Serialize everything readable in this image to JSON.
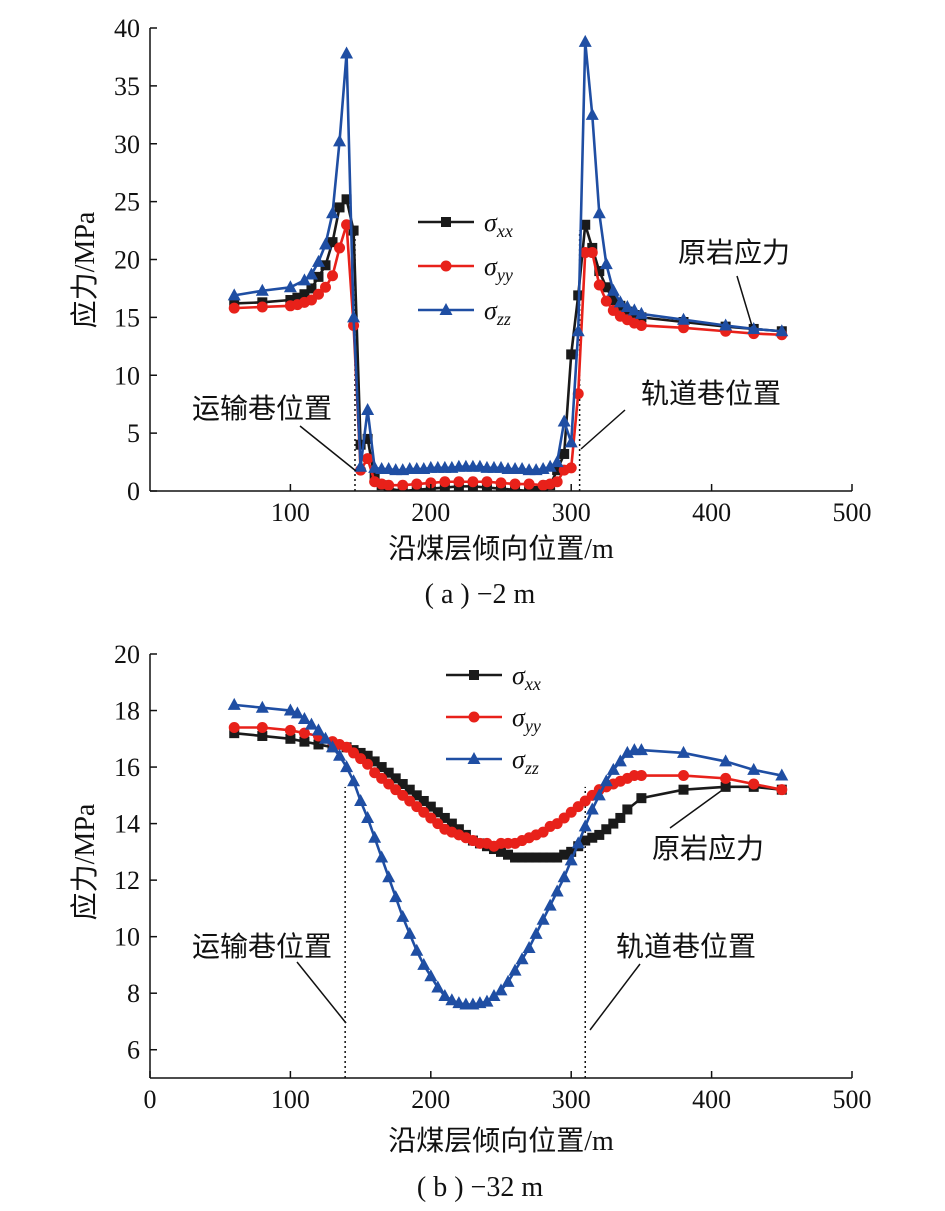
{
  "colors": {
    "sxx": "#1a1a1a",
    "syy": "#e8211a",
    "szz": "#1f4ea3"
  },
  "legend": [
    {
      "key": "sxx",
      "symbol": "σ",
      "sub": "xx",
      "marker": "square"
    },
    {
      "key": "syy",
      "symbol": "σ",
      "sub": "yy",
      "marker": "circle"
    },
    {
      "key": "szz",
      "symbol": "σ",
      "sub": "zz",
      "marker": "triangle"
    }
  ],
  "chart_data": [
    {
      "type": "line",
      "caption": "( a ) −2 m",
      "xlabel": "沿煤层倾向位置/m",
      "ylabel": "应力/MPa",
      "xlim": [
        0,
        500
      ],
      "ylim": [
        0,
        40
      ],
      "xticks": [
        100,
        200,
        300,
        400,
        500
      ],
      "yticks": [
        0,
        5,
        10,
        15,
        20,
        25,
        30,
        35,
        40
      ],
      "annotations": {
        "left_roadway": "运输巷位置",
        "right_roadway": "轨道巷位置",
        "virgin_stress": "原岩应力"
      },
      "roadway_positions": [
        146,
        306
      ],
      "series": [
        {
          "name": "σxx",
          "key": "sxx",
          "x": [
            60,
            80,
            100,
            105,
            110,
            115,
            120,
            125,
            130,
            135,
            140,
            145,
            150,
            155,
            160,
            165,
            170,
            180,
            190,
            200,
            210,
            220,
            230,
            240,
            250,
            260,
            270,
            275,
            280,
            285,
            290,
            295,
            300,
            305,
            310,
            315,
            320,
            325,
            330,
            335,
            340,
            345,
            350,
            380,
            410,
            430,
            450
          ],
          "y": [
            16.2,
            16.3,
            16.5,
            16.7,
            17.0,
            17.5,
            18.5,
            19.5,
            21.5,
            24.5,
            25.2,
            22.5,
            4.0,
            4.5,
            1.2,
            0.5,
            0.2,
            0.0,
            0.1,
            0.2,
            0.3,
            0.4,
            0.4,
            0.3,
            0.2,
            0.1,
            0.0,
            0.0,
            0.1,
            0.5,
            1.8,
            3.2,
            11.8,
            16.9,
            23.0,
            21.0,
            19.0,
            17.6,
            16.5,
            16.0,
            15.5,
            15.2,
            15.0,
            14.6,
            14.2,
            14.0,
            13.8
          ]
        },
        {
          "name": "σyy",
          "key": "syy",
          "x": [
            60,
            80,
            100,
            105,
            110,
            115,
            120,
            125,
            130,
            135,
            140,
            145,
            150,
            155,
            160,
            165,
            170,
            180,
            190,
            200,
            210,
            220,
            230,
            240,
            250,
            260,
            270,
            280,
            285,
            290,
            295,
            300,
            305,
            310,
            315,
            320,
            325,
            330,
            335,
            340,
            345,
            350,
            380,
            410,
            430,
            450
          ],
          "y": [
            15.8,
            15.9,
            16.0,
            16.1,
            16.3,
            16.5,
            17.0,
            17.6,
            18.6,
            21.0,
            23.0,
            14.3,
            1.8,
            2.8,
            0.8,
            0.6,
            0.5,
            0.5,
            0.6,
            0.7,
            0.8,
            0.8,
            0.8,
            0.8,
            0.7,
            0.6,
            0.6,
            0.5,
            0.6,
            0.8,
            1.8,
            2.0,
            8.4,
            20.6,
            20.6,
            17.8,
            16.4,
            15.6,
            15.1,
            14.8,
            14.5,
            14.3,
            14.1,
            13.8,
            13.6,
            13.5
          ]
        },
        {
          "name": "σzz",
          "key": "szz",
          "x": [
            60,
            80,
            100,
            110,
            115,
            120,
            125,
            130,
            135,
            140,
            145,
            150,
            155,
            160,
            165,
            170,
            175,
            180,
            185,
            190,
            195,
            200,
            205,
            210,
            215,
            220,
            225,
            230,
            235,
            240,
            245,
            250,
            255,
            260,
            265,
            270,
            275,
            280,
            285,
            290,
            295,
            300,
            305,
            310,
            315,
            320,
            325,
            330,
            335,
            340,
            345,
            350,
            380,
            410,
            430,
            450
          ],
          "y": [
            16.9,
            17.3,
            17.6,
            18.2,
            18.7,
            19.8,
            21.3,
            24.0,
            30.2,
            37.8,
            15.0,
            2.1,
            7.0,
            2.0,
            1.9,
            1.9,
            1.8,
            1.8,
            1.9,
            1.9,
            1.9,
            2.0,
            2.0,
            2.0,
            2.0,
            2.1,
            2.1,
            2.1,
            2.1,
            2.0,
            2.0,
            2.0,
            1.9,
            1.9,
            1.9,
            1.8,
            1.8,
            1.9,
            2.1,
            2.5,
            6.0,
            4.2,
            13.8,
            38.8,
            32.5,
            24.0,
            19.6,
            17.3,
            16.3,
            15.9,
            15.6,
            15.3,
            14.8,
            14.3,
            14.0,
            13.8
          ]
        }
      ]
    },
    {
      "type": "line",
      "caption": "( b ) −32 m",
      "xlabel": "沿煤层倾向位置/m",
      "ylabel": "应力/MPa",
      "xlim": [
        0,
        500
      ],
      "ylim": [
        5,
        20
      ],
      "xticks": [
        0,
        100,
        200,
        300,
        400,
        500
      ],
      "yticks": [
        6,
        8,
        10,
        12,
        14,
        16,
        18,
        20
      ],
      "annotations": {
        "left_roadway": "运输巷位置",
        "right_roadway": "轨道巷位置",
        "virgin_stress": "原岩应力"
      },
      "roadway_positions": [
        139,
        310
      ],
      "series": [
        {
          "name": "σxx",
          "key": "sxx",
          "x": [
            60,
            80,
            100,
            110,
            120,
            130,
            140,
            145,
            150,
            155,
            160,
            165,
            170,
            175,
            180,
            185,
            190,
            195,
            200,
            205,
            210,
            215,
            220,
            225,
            230,
            235,
            240,
            245,
            250,
            255,
            260,
            265,
            270,
            275,
            280,
            285,
            290,
            295,
            300,
            305,
            310,
            315,
            320,
            325,
            330,
            335,
            340,
            350,
            380,
            410,
            430,
            450
          ],
          "y": [
            17.2,
            17.1,
            17.0,
            16.9,
            16.8,
            16.7,
            16.7,
            16.6,
            16.5,
            16.4,
            16.2,
            16.0,
            15.8,
            15.6,
            15.4,
            15.2,
            15.0,
            14.8,
            14.6,
            14.4,
            14.2,
            14.0,
            13.8,
            13.6,
            13.4,
            13.3,
            13.2,
            13.1,
            13.0,
            12.9,
            12.8,
            12.8,
            12.8,
            12.8,
            12.8,
            12.8,
            12.8,
            12.9,
            13.0,
            13.2,
            13.4,
            13.5,
            13.6,
            13.8,
            14.0,
            14.2,
            14.5,
            14.9,
            15.2,
            15.3,
            15.3,
            15.2
          ]
        },
        {
          "name": "σyy",
          "key": "syy",
          "x": [
            60,
            80,
            100,
            110,
            120,
            130,
            135,
            140,
            145,
            150,
            155,
            160,
            165,
            170,
            175,
            180,
            185,
            190,
            195,
            200,
            205,
            210,
            215,
            220,
            225,
            230,
            235,
            240,
            245,
            250,
            255,
            260,
            265,
            270,
            275,
            280,
            285,
            290,
            295,
            300,
            305,
            310,
            315,
            320,
            325,
            330,
            335,
            340,
            345,
            350,
            380,
            410,
            430,
            450
          ],
          "y": [
            17.4,
            17.4,
            17.3,
            17.2,
            17.1,
            16.9,
            16.8,
            16.7,
            16.5,
            16.3,
            16.1,
            15.8,
            15.6,
            15.4,
            15.2,
            15.0,
            14.8,
            14.6,
            14.4,
            14.2,
            14.0,
            13.8,
            13.7,
            13.6,
            13.5,
            13.4,
            13.3,
            13.3,
            13.2,
            13.3,
            13.3,
            13.3,
            13.4,
            13.5,
            13.6,
            13.7,
            13.9,
            14.0,
            14.2,
            14.4,
            14.6,
            14.8,
            15.0,
            15.2,
            15.3,
            15.4,
            15.5,
            15.6,
            15.7,
            15.7,
            15.7,
            15.6,
            15.4,
            15.2
          ]
        },
        {
          "name": "σzz",
          "key": "szz",
          "x": [
            60,
            80,
            100,
            105,
            110,
            115,
            120,
            125,
            130,
            135,
            140,
            145,
            150,
            155,
            160,
            165,
            170,
            175,
            180,
            185,
            190,
            195,
            200,
            205,
            210,
            215,
            220,
            225,
            230,
            235,
            240,
            245,
            250,
            255,
            260,
            265,
            270,
            275,
            280,
            285,
            290,
            295,
            300,
            305,
            310,
            315,
            320,
            325,
            330,
            335,
            340,
            345,
            350,
            380,
            410,
            430,
            450
          ],
          "y": [
            18.2,
            18.1,
            18.0,
            17.9,
            17.7,
            17.5,
            17.3,
            17.0,
            16.7,
            16.4,
            16.0,
            15.5,
            14.8,
            14.2,
            13.5,
            12.8,
            12.1,
            11.4,
            10.7,
            10.1,
            9.5,
            9.0,
            8.6,
            8.2,
            7.9,
            7.75,
            7.65,
            7.6,
            7.6,
            7.65,
            7.7,
            7.9,
            8.1,
            8.4,
            8.8,
            9.2,
            9.6,
            10.1,
            10.6,
            11.1,
            11.6,
            12.1,
            12.7,
            13.3,
            13.9,
            14.5,
            15.0,
            15.5,
            15.9,
            16.2,
            16.5,
            16.6,
            16.6,
            16.5,
            16.2,
            15.9,
            15.7
          ]
        }
      ]
    }
  ]
}
